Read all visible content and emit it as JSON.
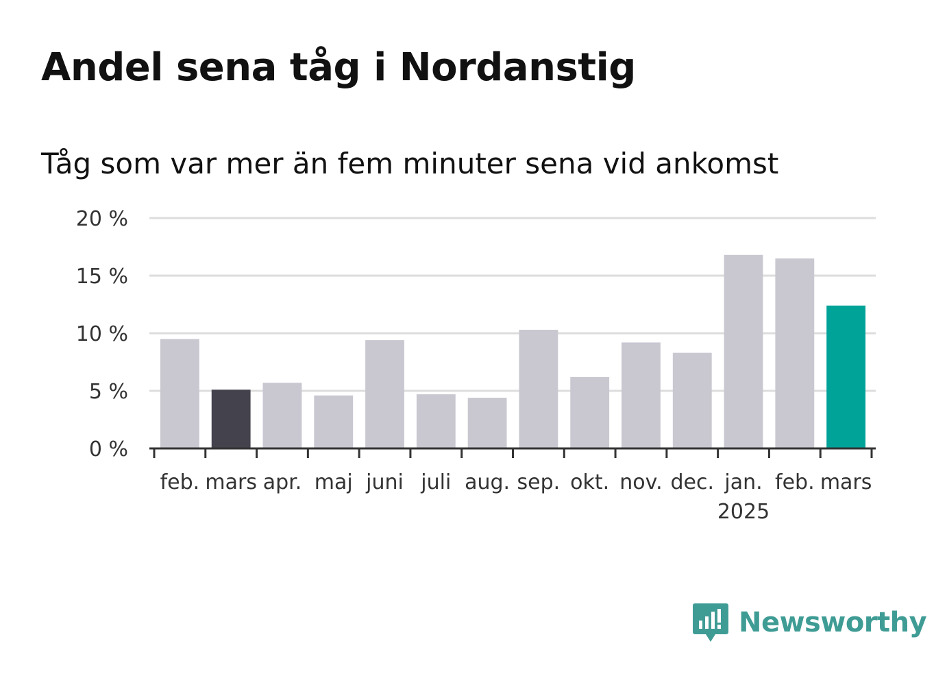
{
  "title": "Andel sena tåg i Nordanstig",
  "subtitle": "Tåg som var mer än fem minuter sena vid ankomst",
  "brand": {
    "name": "Newsworthy",
    "color": "#3f9c95",
    "icon": "newsworthy-chart-bubble-icon"
  },
  "colors": {
    "default": "#c9c8d1",
    "highlight_previous": "#43424d",
    "highlight_current": "#00a398",
    "grid": "#dddddd",
    "axis": "#333333"
  },
  "chart_data": {
    "type": "bar",
    "title": "Andel sena tåg i Nordanstig",
    "subtitle": "Tåg som var mer än fem minuter sena vid ankomst",
    "categories": [
      "feb.",
      "mars",
      "apr.",
      "maj",
      "juni",
      "juli",
      "aug.",
      "sep.",
      "okt.",
      "nov.",
      "dec.",
      "jan.",
      "feb.",
      "mars"
    ],
    "year_labels": [
      "",
      "",
      "",
      "",
      "",
      "",
      "",
      "",
      "",
      "",
      "",
      "2025",
      "",
      ""
    ],
    "values": [
      9.5,
      5.1,
      5.7,
      4.6,
      9.4,
      4.7,
      4.4,
      10.3,
      6.2,
      9.2,
      8.3,
      16.8,
      16.5,
      12.4
    ],
    "highlight": [
      "default",
      "previous",
      "default",
      "default",
      "default",
      "default",
      "default",
      "default",
      "default",
      "default",
      "default",
      "default",
      "default",
      "current"
    ],
    "ylim": [
      0,
      20
    ],
    "yticks": [
      0,
      5,
      10,
      15,
      20
    ],
    "ytick_labels": [
      "0 %",
      "5 %",
      "10 %",
      "15 %",
      "20 %"
    ],
    "grid": true,
    "xlabel": "",
    "ylabel": ""
  }
}
